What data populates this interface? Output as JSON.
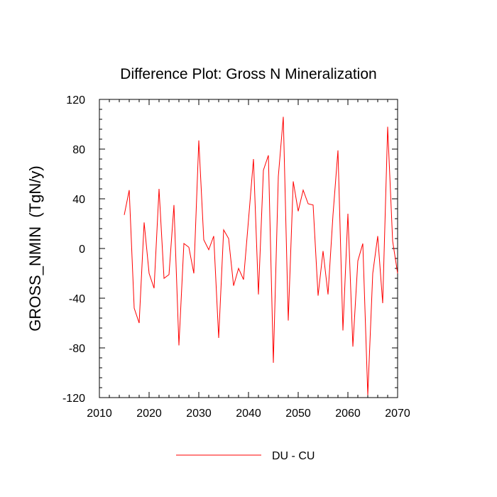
{
  "chart_data": {
    "type": "line",
    "title": "Difference Plot: Gross N Mineralization",
    "xlabel": "",
    "ylabel": "GROSS_NMIN  (TgN/y)",
    "xlim": [
      2010,
      2070
    ],
    "ylim": [
      -120,
      120
    ],
    "xticks": [
      2010,
      2020,
      2030,
      2040,
      2050,
      2060,
      2070
    ],
    "xtick_labels": [
      "2010",
      "2020",
      "2030",
      "2040",
      "2050",
      "2060",
      "2070"
    ],
    "yticks": [
      -120,
      -80,
      -40,
      0,
      40,
      80,
      120
    ],
    "ytick_labels": [
      "-120",
      "-80",
      "-40",
      "0",
      "40",
      "80",
      "120"
    ],
    "grid": false,
    "legend_position": "bottom-center",
    "x": [
      2015,
      2016,
      2017,
      2018,
      2019,
      2020,
      2021,
      2022,
      2023,
      2024,
      2025,
      2026,
      2027,
      2028,
      2029,
      2030,
      2031,
      2032,
      2033,
      2034,
      2035,
      2036,
      2037,
      2038,
      2039,
      2040,
      2041,
      2042,
      2043,
      2044,
      2045,
      2046,
      2047,
      2048,
      2049,
      2050,
      2051,
      2052,
      2053,
      2054,
      2055,
      2056,
      2057,
      2058,
      2059,
      2060,
      2061,
      2062,
      2063,
      2064,
      2065,
      2066,
      2067,
      2068,
      2069,
      2070
    ],
    "series": [
      {
        "name": "DU - CU",
        "color": "#ff0000",
        "values": [
          27,
          47,
          -48,
          -60,
          21,
          -20,
          -32,
          48,
          -24,
          -21,
          35,
          -78,
          4,
          1,
          -20,
          87,
          7,
          -1,
          10,
          -72,
          15,
          8,
          -30,
          -16,
          -25,
          23,
          72,
          -37,
          63,
          75,
          -92,
          58,
          106,
          -58,
          54,
          30,
          47,
          36,
          35,
          -38,
          -2,
          -37,
          27,
          79,
          -66,
          28,
          -79,
          -10,
          4,
          -118,
          -20,
          10,
          -44,
          98,
          6,
          -20
        ]
      }
    ]
  }
}
